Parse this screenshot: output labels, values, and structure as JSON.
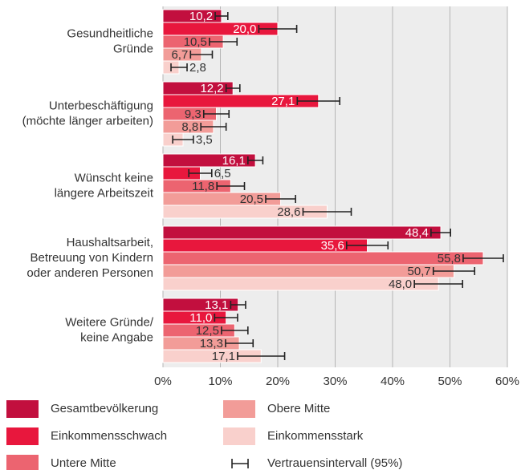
{
  "chart_data": {
    "type": "bar",
    "orientation": "horizontal",
    "categories": [
      [
        "Gesundheitliche",
        "Gründe"
      ],
      [
        "Unterbeschäftigung",
        "(möchte länger arbeiten)"
      ],
      [
        "Wünscht keine",
        "längere Arbeitszeit"
      ],
      [
        "Haushaltsarbeit,",
        "Betreuung von Kindern",
        "oder anderen Personen"
      ],
      [
        "Weitere Gründe/",
        "keine Angabe"
      ]
    ],
    "series": [
      {
        "name": "Gesamtbevölkerung",
        "color": "#c20f3e",
        "values": [
          10.2,
          12.2,
          16.1,
          48.4,
          13.1
        ],
        "value_labels": [
          "10,2",
          "12,2",
          "16,1",
          "48,4",
          "13,1"
        ],
        "errors": [
          1.1,
          1.2,
          1.3,
          1.7,
          1.3
        ]
      },
      {
        "name": "Einkommensschwach",
        "color": "#e8173d",
        "values": [
          20.0,
          27.1,
          6.5,
          35.6,
          11.0
        ],
        "value_labels": [
          "20,0",
          "27,1",
          "6,5",
          "35,6",
          "11,0"
        ],
        "errors": [
          3.3,
          3.7,
          2.0,
          3.6,
          2.0
        ]
      },
      {
        "name": "Untere Mitte",
        "color": "#ec6470",
        "values": [
          10.5,
          9.3,
          11.8,
          55.8,
          12.5
        ],
        "value_labels": [
          "10,5",
          "9,3",
          "11,8",
          "55,8",
          "12,5"
        ],
        "errors": [
          2.4,
          2.2,
          2.4,
          3.5,
          2.3
        ]
      },
      {
        "name": "Obere Mitte",
        "color": "#f29c98",
        "values": [
          6.7,
          8.8,
          20.5,
          50.7,
          13.3
        ],
        "value_labels": [
          "6,7",
          "8,8",
          "20,5",
          "50,7",
          "13,3"
        ],
        "errors": [
          1.9,
          2.2,
          2.6,
          3.6,
          2.4
        ]
      },
      {
        "name": "Einkommensstark",
        "color": "#f9d0cc",
        "values": [
          2.8,
          3.5,
          28.6,
          48.0,
          17.1
        ],
        "value_labels": [
          "2,8",
          "3,5",
          "28,6",
          "48,0",
          "17,1"
        ],
        "errors": [
          1.4,
          1.8,
          4.2,
          4.2,
          4.1
        ]
      }
    ],
    "error_legend": "Vertrauensintervall (95%)",
    "xlim": [
      0,
      60
    ],
    "xticks": [
      {
        "value": 0,
        "label": "0%"
      },
      {
        "value": 10,
        "label": "10%"
      },
      {
        "value": 20,
        "label": "20%"
      },
      {
        "value": 30,
        "label": "30%"
      },
      {
        "value": 40,
        "label": "40%"
      },
      {
        "value": 50,
        "label": "50%"
      },
      {
        "value": 60,
        "label": "60%"
      }
    ],
    "grid": true
  }
}
